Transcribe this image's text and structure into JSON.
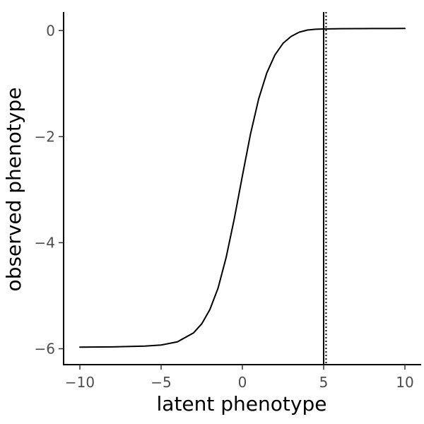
{
  "chart_data": {
    "type": "line",
    "title": "",
    "xlabel": "latent phenotype",
    "ylabel": "observed phenotype",
    "xlim": [
      -11,
      11
    ],
    "ylim": [
      -6.3,
      0.35
    ],
    "x_ticks": [
      -10,
      -5,
      0,
      5,
      10
    ],
    "x_tick_labels": [
      "−10",
      "−5",
      "0",
      "5",
      "10"
    ],
    "y_ticks": [
      0,
      -2,
      -4,
      -6
    ],
    "y_tick_labels": [
      "0",
      "−2",
      "−4",
      "−6"
    ],
    "grid": false,
    "legend": "none",
    "series": [
      {
        "style": "solid",
        "color": "#000000",
        "x": [
          -10,
          -8,
          -6,
          -5,
          -4,
          -3,
          -2.5,
          -2,
          -1.5,
          -1,
          -0.5,
          0,
          0.5,
          1,
          1.5,
          2,
          2.5,
          3,
          3.5,
          4,
          4.5,
          5,
          6,
          7,
          8,
          9,
          10
        ],
        "y": [
          -5.97,
          -5.965,
          -5.95,
          -5.93,
          -5.87,
          -5.7,
          -5.53,
          -5.26,
          -4.86,
          -4.28,
          -3.55,
          -2.74,
          -1.95,
          -1.29,
          -0.8,
          -0.46,
          -0.24,
          -0.11,
          -0.03,
          0.01,
          0.025,
          0.03,
          0.035,
          0.037,
          0.038,
          0.039,
          0.04
        ]
      }
    ],
    "reference_lines": [
      {
        "orientation": "vertical",
        "x": 5.0,
        "style": "solid",
        "color": "#000000"
      },
      {
        "orientation": "vertical",
        "x": 5.15,
        "style": "dotted",
        "color": "#000000"
      }
    ]
  }
}
